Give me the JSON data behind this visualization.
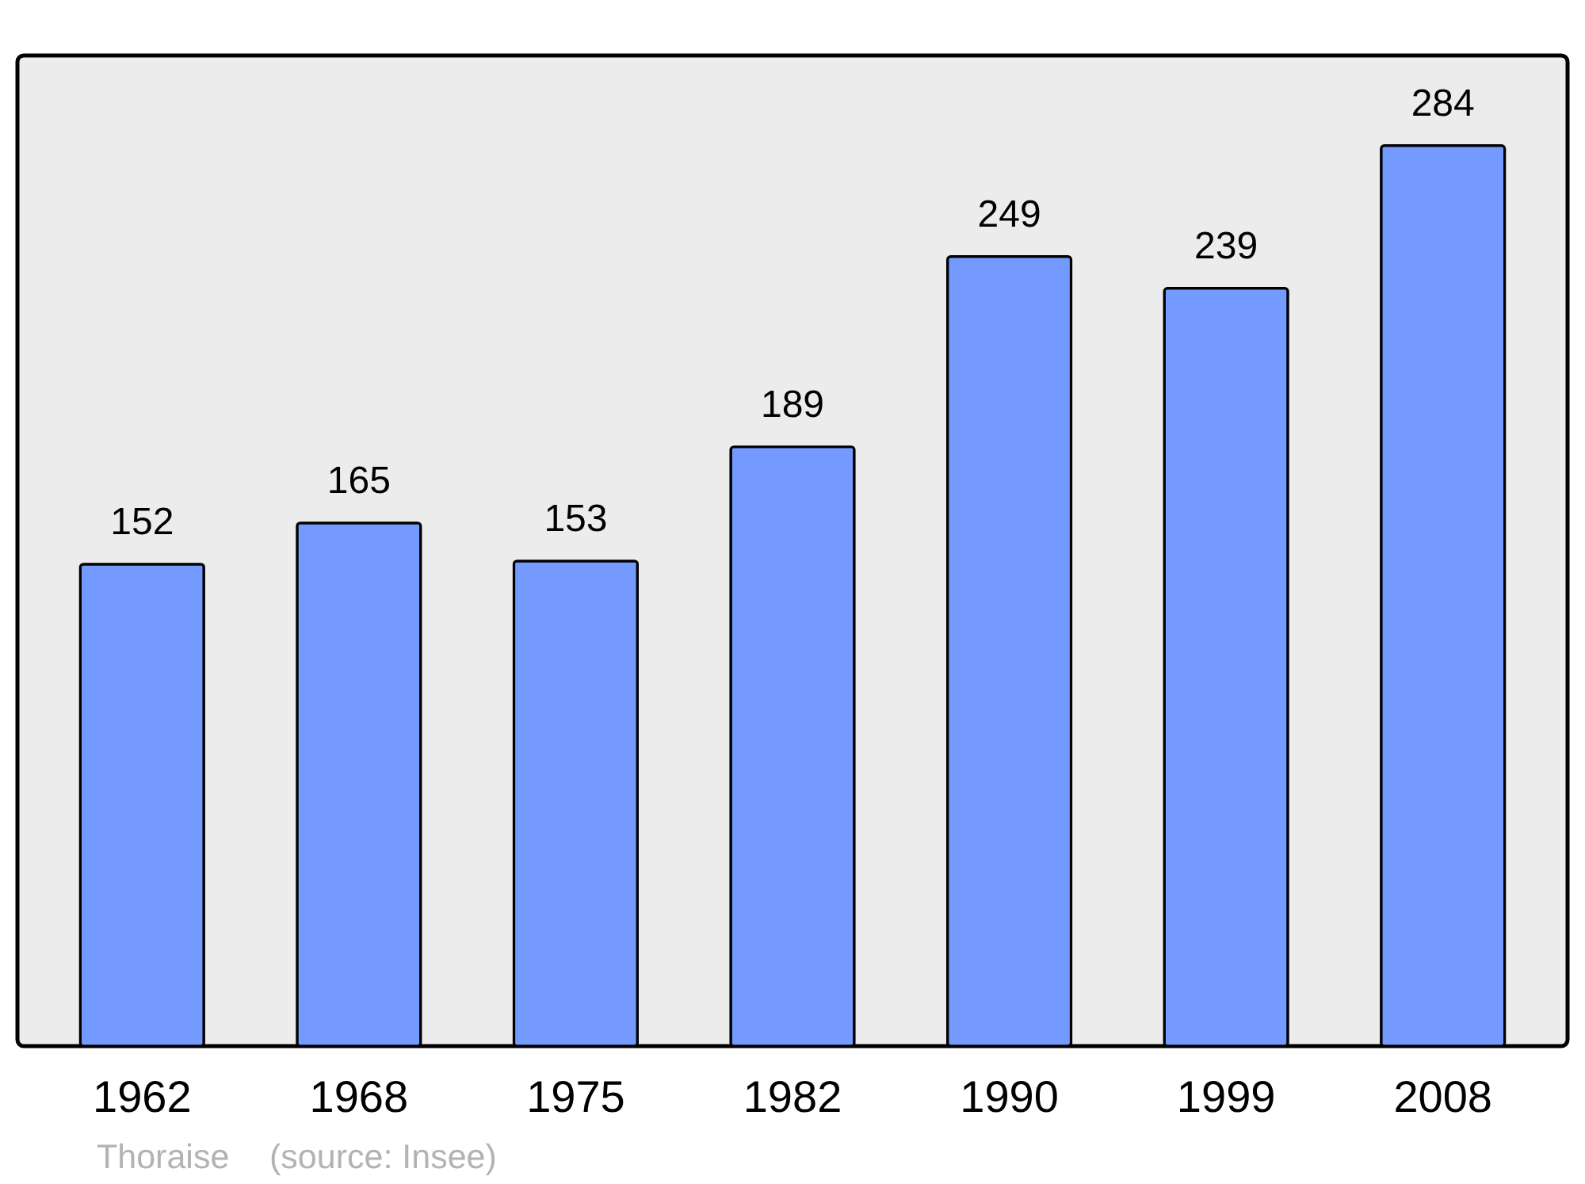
{
  "chart_data": {
    "type": "bar",
    "categories": [
      "1962",
      "1968",
      "1975",
      "1982",
      "1990",
      "1999",
      "2008"
    ],
    "values": [
      152,
      165,
      153,
      189,
      249,
      239,
      284
    ],
    "color": "#7499ff",
    "data_labels": true,
    "annotations": [
      "Thoraise",
      "(source: Insee)"
    ]
  }
}
